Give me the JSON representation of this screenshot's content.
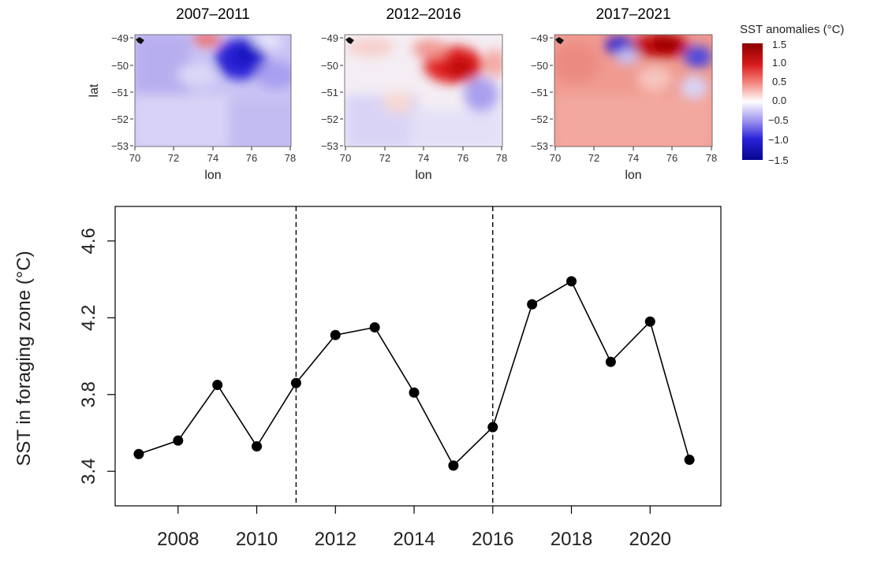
{
  "maps": {
    "panels": [
      {
        "title": "2007–2011",
        "pattern": "cool"
      },
      {
        "title": "2012–2016",
        "pattern": "mixed"
      },
      {
        "title": "2017–2021",
        "pattern": "warm"
      }
    ],
    "lat_ticks": [
      "−49",
      "−50",
      "−51",
      "−52",
      "−53"
    ],
    "lon_ticks": [
      "70",
      "72",
      "74",
      "76",
      "78"
    ],
    "xlabel": "lon",
    "ylabel": "lat",
    "colorbar": {
      "title": "SST anomalies (°C)",
      "ticks": [
        "1.5",
        "1.0",
        "0.5",
        "0.0",
        "−0.5",
        "−1.0",
        "−1.5"
      ],
      "range": [
        -1.5,
        1.5
      ],
      "colors": {
        "low": "#0a0aa6",
        "mid": "#ffffff",
        "high": "#a30000"
      }
    }
  },
  "chart_data": {
    "type": "line",
    "title": "",
    "xlabel": "",
    "ylabel": "SST in foraging zone (°C)",
    "x": [
      2007,
      2008,
      2009,
      2010,
      2011,
      2012,
      2013,
      2014,
      2015,
      2016,
      2017,
      2018,
      2019,
      2020,
      2021
    ],
    "values": [
      3.49,
      3.56,
      3.85,
      3.53,
      3.86,
      4.11,
      4.15,
      3.81,
      3.43,
      3.63,
      4.27,
      4.39,
      3.97,
      4.18,
      3.46
    ],
    "xlim": [
      2006.4,
      2021.8
    ],
    "ylim": [
      3.22,
      4.78
    ],
    "xticks": [
      "2008",
      "2010",
      "2012",
      "2014",
      "2016",
      "2018",
      "2020"
    ],
    "yticks": [
      "3.4",
      "3.8",
      "4.2",
      "4.6"
    ],
    "vlines": [
      2011,
      2016
    ],
    "grid": false,
    "marker": "filled-circle",
    "color": "#000000"
  }
}
